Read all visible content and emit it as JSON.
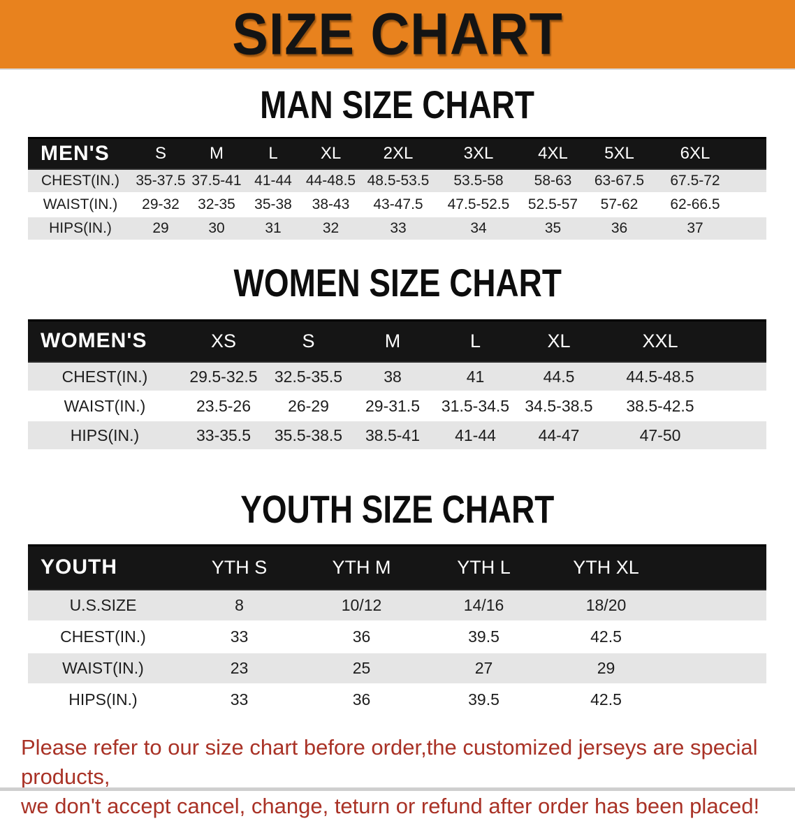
{
  "banner": {
    "title": "SIZE CHART"
  },
  "sections": [
    {
      "key": "men",
      "heading": "MAN SIZE CHART",
      "table": {
        "header_label": "MEN'S",
        "columns": [
          "S",
          "M",
          "L",
          "XL",
          "2XL",
          "3XL",
          "4XL",
          "5XL",
          "6XL"
        ],
        "rows": [
          {
            "label": "CHEST(IN.)",
            "values": [
              "35-37.5",
              "37.5-41",
              "41-44",
              "44-48.5",
              "48.5-53.5",
              "53.5-58",
              "58-63",
              "63-67.5",
              "67.5-72"
            ]
          },
          {
            "label": "WAIST(IN.)",
            "values": [
              "29-32",
              "32-35",
              "35-38",
              "38-43",
              "43-47.5",
              "47.5-52.5",
              "52.5-57",
              "57-62",
              "62-66.5"
            ]
          },
          {
            "label": "HIPS(IN.)",
            "values": [
              "29",
              "30",
              "31",
              "32",
              "33",
              "34",
              "35",
              "36",
              "37"
            ]
          }
        ]
      }
    },
    {
      "key": "women",
      "heading": "WOMEN SIZE CHART",
      "table": {
        "header_label": "WOMEN'S",
        "columns": [
          "XS",
          "S",
          "M",
          "L",
          "XL",
          "XXL"
        ],
        "rows": [
          {
            "label": "CHEST(IN.)",
            "values": [
              "29.5-32.5",
              "32.5-35.5",
              "38",
              "41",
              "44.5",
              "44.5-48.5"
            ]
          },
          {
            "label": "WAIST(IN.)",
            "values": [
              "23.5-26",
              "26-29",
              "29-31.5",
              "31.5-34.5",
              "34.5-38.5",
              "38.5-42.5"
            ]
          },
          {
            "label": "HIPS(IN.)",
            "values": [
              "33-35.5",
              "35.5-38.5",
              "38.5-41",
              "41-44",
              "44-47",
              "47-50"
            ]
          }
        ]
      }
    },
    {
      "key": "youth",
      "heading": "YOUTH SIZE CHART",
      "table": {
        "header_label": "YOUTH",
        "columns": [
          "YTH S",
          "YTH M",
          "YTH L",
          "YTH XL"
        ],
        "rows": [
          {
            "label": "U.S.SIZE",
            "values": [
              "8",
              "10/12",
              "14/16",
              "18/20"
            ]
          },
          {
            "label": "CHEST(IN.)",
            "values": [
              "33",
              "36",
              "39.5",
              "42.5"
            ]
          },
          {
            "label": "WAIST(IN.)",
            "values": [
              "23",
              "25",
              "27",
              "29"
            ]
          },
          {
            "label": "HIPS(IN.)",
            "values": [
              "33",
              "36",
              "39.5",
              "42.5"
            ]
          }
        ]
      }
    }
  ],
  "footer": {
    "line1": "Please refer to our size chart before order,the customized jerseys are special products,",
    "line2": "we don't accept cancel, change, teturn or refund after order has been placed!"
  },
  "colors": {
    "banner_bg": "#E8821E",
    "table_header_bg": "#151515",
    "table_header_text": "#FFFFFF",
    "row_stripe": "#E5E5E5",
    "body_text": "#1D1D1D",
    "footer_text": "#A93226"
  }
}
